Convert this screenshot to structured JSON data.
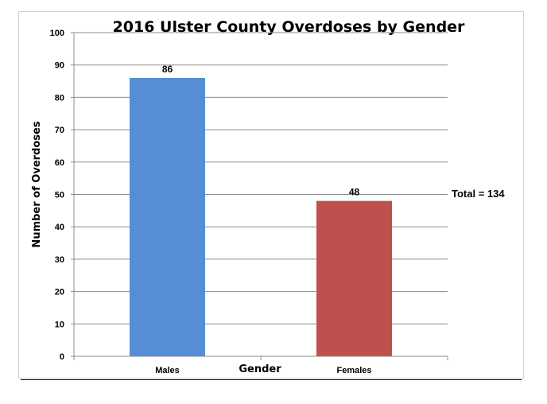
{
  "chart_data": {
    "type": "bar",
    "title": "2016 Ulster County Overdoses by Gender",
    "xlabel": "Gender",
    "ylabel": "Number of Overdoses",
    "categories": [
      "Males",
      "Females"
    ],
    "values": [
      86,
      48
    ],
    "data_labels": [
      "86",
      "48"
    ],
    "colors": [
      "#558ed5",
      "#c0504d"
    ],
    "ylim": [
      0,
      100
    ],
    "yticks": [
      0,
      10,
      20,
      30,
      40,
      50,
      60,
      70,
      80,
      90,
      100
    ],
    "grid": true,
    "legend": "none",
    "annotation": "Total  = 134"
  }
}
